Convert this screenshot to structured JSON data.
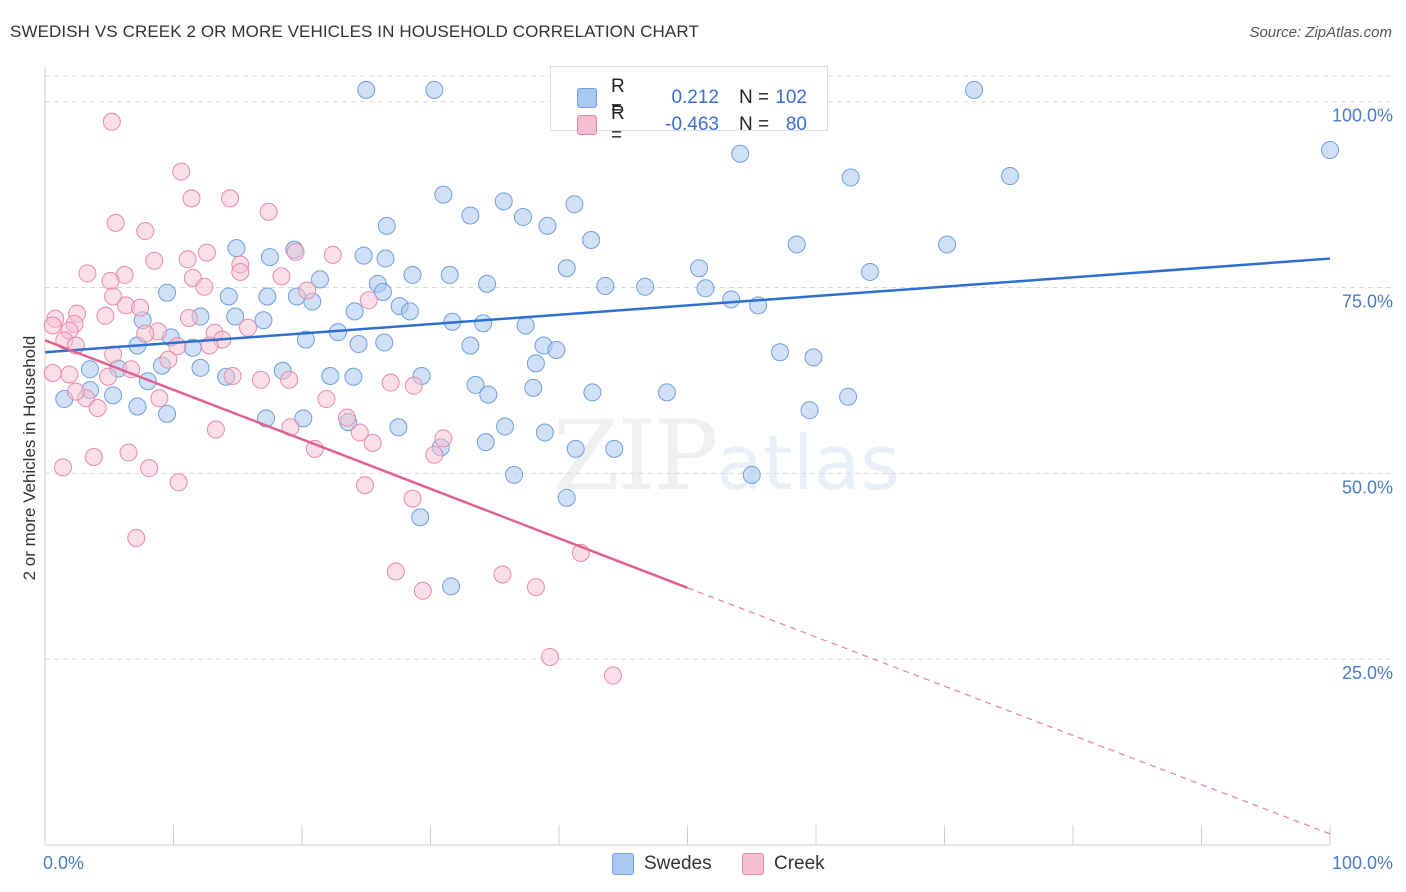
{
  "header": {
    "title": "SWEDISH VS CREEK 2 OR MORE VEHICLES IN HOUSEHOLD CORRELATION CHART",
    "source": "Source: ZipAtlas.com"
  },
  "watermark": {
    "zip": "ZIP",
    "atlas": "atlas"
  },
  "legend": {
    "rows": [
      {
        "r_label": "R =",
        "r_value": "0.212",
        "n_label": "N =",
        "n_value": "102"
      },
      {
        "r_label": "R =",
        "r_value": "-0.463",
        "n_label": "N =",
        "n_value": "80"
      }
    ],
    "bottom": [
      "Swedes",
      "Creek"
    ]
  },
  "colors": {
    "swedes_fill": "#aac8f0",
    "swedes_stroke": "#6f9fde",
    "swedes_line": "#2f6fcf",
    "creek_fill": "#f5bfd0",
    "creek_stroke": "#e88aa8",
    "creek_line": "#e0628e"
  },
  "chart_data": {
    "type": "scatter",
    "title": "SWEDISH VS CREEK 2 OR MORE VEHICLES IN HOUSEHOLD CORRELATION CHART",
    "xlabel": "",
    "ylabel": "2 or more Vehicles in Household",
    "xlim": [
      0,
      100
    ],
    "ylim": [
      0,
      104
    ],
    "x_ticks": [
      "0.0%",
      "100.0%"
    ],
    "y_ticks": [
      {
        "value": 100,
        "label": "100.0%"
      },
      {
        "value": 75,
        "label": "75.0%"
      },
      {
        "value": 50,
        "label": "50.0%"
      },
      {
        "value": 25,
        "label": "25.0%"
      }
    ],
    "grid": true,
    "legend_position": "top-center",
    "series": [
      {
        "name": "Swedes",
        "trend": {
          "x": [
            0,
            100
          ],
          "y": [
            66.3,
            78.9
          ]
        },
        "points": [
          [
            25,
            101.6
          ],
          [
            30.3,
            101.6
          ],
          [
            56.7,
            98.4
          ],
          [
            72.3,
            101.6
          ],
          [
            100,
            93.5
          ],
          [
            54.1,
            93
          ],
          [
            62.7,
            89.8
          ],
          [
            75.1,
            90
          ],
          [
            31,
            87.5
          ],
          [
            35.7,
            86.6
          ],
          [
            41.2,
            86.2
          ],
          [
            37.2,
            84.5
          ],
          [
            33.1,
            84.7
          ],
          [
            39.1,
            83.3
          ],
          [
            26.6,
            83.3
          ],
          [
            42.5,
            81.4
          ],
          [
            58.5,
            80.8
          ],
          [
            70.2,
            80.8
          ],
          [
            14.9,
            80.3
          ],
          [
            19.4,
            80.1
          ],
          [
            17.5,
            79.1
          ],
          [
            24.8,
            79.3
          ],
          [
            26.5,
            78.9
          ],
          [
            40.6,
            77.6
          ],
          [
            50.9,
            77.6
          ],
          [
            64.2,
            77.1
          ],
          [
            28.6,
            76.7
          ],
          [
            31.5,
            76.7
          ],
          [
            21.4,
            76.1
          ],
          [
            25.9,
            75.5
          ],
          [
            34.4,
            75.5
          ],
          [
            43.6,
            75.2
          ],
          [
            46.7,
            75.1
          ],
          [
            51.4,
            74.9
          ],
          [
            26.3,
            74.4
          ],
          [
            9.5,
            74.3
          ],
          [
            19.6,
            73.8
          ],
          [
            14.3,
            73.8
          ],
          [
            17.3,
            73.8
          ],
          [
            53.4,
            73.4
          ],
          [
            20.8,
            73.1
          ],
          [
            55.5,
            72.6
          ],
          [
            27.6,
            72.5
          ],
          [
            24.1,
            71.8
          ],
          [
            28.4,
            71.8
          ],
          [
            12.1,
            71.1
          ],
          [
            14.8,
            71.1
          ],
          [
            17,
            70.6
          ],
          [
            7.6,
            70.6
          ],
          [
            31.7,
            70.4
          ],
          [
            34.1,
            70.2
          ],
          [
            37.4,
            69.9
          ],
          [
            22.8,
            69
          ],
          [
            9.8,
            68.3
          ],
          [
            20.3,
            68
          ],
          [
            26.4,
            67.6
          ],
          [
            24.4,
            67.4
          ],
          [
            33.1,
            67.2
          ],
          [
            38.8,
            67.2
          ],
          [
            7.2,
            67.2
          ],
          [
            11.5,
            66.9
          ],
          [
            39.8,
            66.6
          ],
          [
            57.2,
            66.3
          ],
          [
            59.8,
            65.6
          ],
          [
            38.2,
            64.8
          ],
          [
            9.1,
            64.5
          ],
          [
            12.1,
            64.2
          ],
          [
            18.5,
            63.8
          ],
          [
            3.5,
            64
          ],
          [
            5.7,
            64.1
          ],
          [
            29.3,
            63.1
          ],
          [
            14.1,
            63
          ],
          [
            22.2,
            63.1
          ],
          [
            24,
            63
          ],
          [
            8,
            62.4
          ],
          [
            33.5,
            61.9
          ],
          [
            38,
            61.5
          ],
          [
            34.5,
            60.6
          ],
          [
            62.5,
            60.3
          ],
          [
            59.5,
            58.5
          ],
          [
            3.5,
            61.2
          ],
          [
            1.5,
            60
          ],
          [
            7.2,
            59
          ],
          [
            5.3,
            60.5
          ],
          [
            9.5,
            58
          ],
          [
            17.2,
            57.4
          ],
          [
            20.1,
            57.4
          ],
          [
            23.6,
            56.9
          ],
          [
            27.5,
            56.2
          ],
          [
            30.8,
            53.5
          ],
          [
            35.8,
            56.3
          ],
          [
            38.9,
            55.5
          ],
          [
            34.3,
            54.2
          ],
          [
            41.3,
            53.3
          ],
          [
            44.3,
            53.3
          ],
          [
            42.6,
            60.9
          ],
          [
            48.4,
            60.9
          ],
          [
            55,
            49.8
          ],
          [
            36.5,
            49.8
          ],
          [
            29.2,
            44.1
          ],
          [
            40.6,
            46.7
          ],
          [
            31.6,
            34.8
          ]
        ]
      },
      {
        "name": "Creek",
        "trend": {
          "x": [
            0,
            50
          ],
          "y": [
            67.9,
            34.6
          ]
        },
        "trend_dashed": {
          "x": [
            50,
            100
          ],
          "y": [
            34.6,
            1.5
          ]
        },
        "points": [
          [
            5.2,
            97.3
          ],
          [
            10.6,
            90.6
          ],
          [
            11.4,
            87
          ],
          [
            14.4,
            87
          ],
          [
            17.4,
            85.2
          ],
          [
            5.5,
            83.7
          ],
          [
            7.8,
            82.6
          ],
          [
            8.5,
            78.6
          ],
          [
            12.6,
            79.7
          ],
          [
            22.4,
            79.4
          ],
          [
            19.5,
            79.8
          ],
          [
            15.2,
            78.1
          ],
          [
            15.2,
            77.1
          ],
          [
            11.1,
            78.8
          ],
          [
            3.3,
            76.9
          ],
          [
            6.2,
            76.7
          ],
          [
            11.5,
            76.3
          ],
          [
            18.4,
            76.5
          ],
          [
            20.4,
            74.6
          ],
          [
            5.1,
            75.9
          ],
          [
            12.4,
            75.1
          ],
          [
            25.2,
            73.3
          ],
          [
            5.3,
            73.8
          ],
          [
            6.3,
            72.6
          ],
          [
            7.4,
            72.3
          ],
          [
            2.5,
            71.5
          ],
          [
            0.8,
            70.8
          ],
          [
            0.6,
            69.9
          ],
          [
            2.3,
            70.1
          ],
          [
            4.7,
            71.2
          ],
          [
            1.9,
            69.2
          ],
          [
            8.8,
            69.1
          ],
          [
            11.2,
            70.9
          ],
          [
            13.2,
            68.9
          ],
          [
            15.8,
            69.6
          ],
          [
            7.8,
            68.8
          ],
          [
            13.8,
            68
          ],
          [
            1.5,
            67.9
          ],
          [
            2.4,
            67.2
          ],
          [
            10.3,
            67.1
          ],
          [
            12.8,
            67.2
          ],
          [
            5.3,
            66
          ],
          [
            9.6,
            65.3
          ],
          [
            6.7,
            64
          ],
          [
            1.9,
            63.3
          ],
          [
            4.9,
            63
          ],
          [
            14.6,
            63.1
          ],
          [
            0.6,
            63.5
          ],
          [
            3.2,
            60.1
          ],
          [
            19,
            62.6
          ],
          [
            16.8,
            62.6
          ],
          [
            21.9,
            60
          ],
          [
            8.9,
            60.1
          ],
          [
            2.4,
            61
          ],
          [
            26.9,
            62.2
          ],
          [
            28.7,
            61.8
          ],
          [
            4.1,
            58.8
          ],
          [
            23.5,
            57.5
          ],
          [
            19.1,
            56.2
          ],
          [
            24.5,
            55.5
          ],
          [
            13.3,
            55.9
          ],
          [
            25.5,
            54.1
          ],
          [
            31,
            54.7
          ],
          [
            6.5,
            52.8
          ],
          [
            3.8,
            52.2
          ],
          [
            1.4,
            50.8
          ],
          [
            8.1,
            50.7
          ],
          [
            21,
            53.3
          ],
          [
            24.9,
            48.4
          ],
          [
            28.6,
            46.6
          ],
          [
            30.3,
            52.5
          ],
          [
            10.4,
            48.8
          ],
          [
            7.1,
            41.3
          ],
          [
            35.6,
            36.4
          ],
          [
            27.3,
            36.8
          ],
          [
            29.4,
            34.2
          ],
          [
            38.2,
            34.7
          ],
          [
            41.7,
            39.3
          ],
          [
            39.3,
            25.3
          ],
          [
            44.2,
            22.8
          ]
        ]
      }
    ]
  }
}
